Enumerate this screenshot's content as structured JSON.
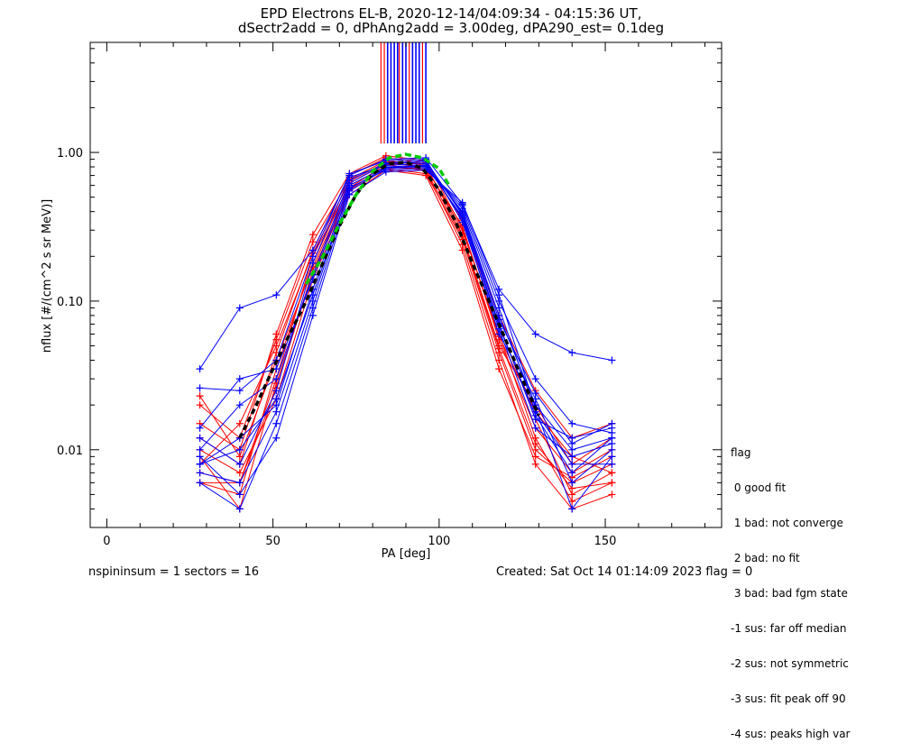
{
  "title_line1": "EPD Electrons EL-B, 2020-12-14/04:09:34 - 04:15:36 UT,",
  "title_line2": "dSectr2add = 0, dPhAng2add = 3.00deg, dPA290_est=   0.1deg",
  "footer_left": "nspininsum =  1  sectors = 16",
  "footer_right": "Created: Sat Oct 14 01:14:09 2023   flag = 0",
  "legend": {
    "title": "flag",
    "items": [
      " 0 good fit",
      " 1 bad: not converge",
      " 2 bad: no fit",
      " 3 bad: bad fgm state",
      "-1 sus: far off median",
      "-2 sus: not symmetric",
      "-3 sus: fit peak off 90",
      "-4 sus: peaks high var"
    ]
  },
  "colors": {
    "red": "#ff0000",
    "blue": "#0000ff",
    "green": "#00cc00",
    "black": "#000000"
  },
  "chart_data": {
    "type": "line",
    "xlabel": "PA [deg]",
    "ylabel": "nflux [#/(cm^2 s sr MeV)]",
    "xlim": [
      -5,
      185
    ],
    "ylim": [
      0.003,
      5.5
    ],
    "yscale": "log",
    "xticks": [
      0,
      50,
      100,
      150
    ],
    "xtick_labels": [
      "0",
      "50",
      "100",
      "150"
    ],
    "yticks": [
      0.01,
      0.1,
      1.0
    ],
    "ytick_labels": [
      "0.01",
      "0.10",
      "1.00"
    ],
    "grid": false,
    "pa_bins": [
      28,
      40,
      51,
      62,
      73,
      84,
      96,
      107,
      118,
      129,
      140,
      152
    ],
    "vertical_peak_lines": {
      "red": [
        82.5,
        83.5,
        88,
        91,
        95
      ],
      "blue": [
        84.5,
        85.5,
        86.5,
        87.5,
        89,
        90,
        92,
        93,
        94,
        96
      ],
      "y_from": 1.15
    },
    "series": [
      {
        "color": "#ff0000",
        "values": [
          0.006,
          0.005,
          0.035,
          0.18,
          0.62,
          0.85,
          0.8,
          0.3,
          0.06,
          0.012,
          0.0045,
          0.006
        ]
      },
      {
        "color": "#ff0000",
        "values": [
          0.009,
          0.004,
          0.028,
          0.15,
          0.55,
          0.78,
          0.72,
          0.26,
          0.045,
          0.01,
          0.006,
          0.008
        ]
      },
      {
        "color": "#ff0000",
        "values": [
          0.012,
          0.008,
          0.045,
          0.22,
          0.7,
          0.92,
          0.85,
          0.35,
          0.07,
          0.016,
          0.005,
          0.007
        ]
      },
      {
        "color": "#ff0000",
        "values": [
          0.007,
          0.006,
          0.03,
          0.2,
          0.6,
          0.8,
          0.78,
          0.32,
          0.055,
          0.014,
          0.007,
          0.01
        ]
      },
      {
        "color": "#ff0000",
        "values": [
          0.02,
          0.012,
          0.055,
          0.25,
          0.66,
          0.88,
          0.82,
          0.28,
          0.05,
          0.02,
          0.008,
          0.012
        ]
      },
      {
        "color": "#ff0000",
        "values": [
          0.023,
          0.009,
          0.04,
          0.17,
          0.58,
          0.83,
          0.75,
          0.24,
          0.04,
          0.008,
          0.004,
          0.005
        ]
      },
      {
        "color": "#ff0000",
        "values": [
          0.01,
          0.007,
          0.022,
          0.14,
          0.52,
          0.76,
          0.7,
          0.22,
          0.035,
          0.009,
          0.0065,
          0.009
        ]
      },
      {
        "color": "#ff0000",
        "values": [
          0.008,
          0.015,
          0.05,
          0.21,
          0.64,
          0.86,
          0.84,
          0.36,
          0.08,
          0.025,
          0.012,
          0.015
        ]
      },
      {
        "color": "#ff0000",
        "values": [
          0.006,
          0.006,
          0.026,
          0.16,
          0.56,
          0.8,
          0.76,
          0.27,
          0.048,
          0.011,
          0.0055,
          0.006
        ]
      },
      {
        "color": "#ff0000",
        "values": [
          0.015,
          0.01,
          0.06,
          0.28,
          0.72,
          0.95,
          0.88,
          0.31,
          0.058,
          0.018,
          0.009,
          0.007
        ]
      },
      {
        "color": "#0000ff",
        "values": [
          0.008,
          0.012,
          0.02,
          0.12,
          0.6,
          0.8,
          0.82,
          0.4,
          0.08,
          0.02,
          0.01,
          0.012
        ]
      },
      {
        "color": "#0000ff",
        "values": [
          0.006,
          0.004,
          0.015,
          0.09,
          0.55,
          0.78,
          0.8,
          0.42,
          0.09,
          0.018,
          0.008,
          0.008
        ]
      },
      {
        "color": "#0000ff",
        "values": [
          0.01,
          0.02,
          0.03,
          0.15,
          0.65,
          0.85,
          0.88,
          0.38,
          0.07,
          0.016,
          0.012,
          0.014
        ]
      },
      {
        "color": "#0000ff",
        "values": [
          0.012,
          0.008,
          0.025,
          0.18,
          0.68,
          0.82,
          0.84,
          0.36,
          0.06,
          0.022,
          0.006,
          0.01
        ]
      },
      {
        "color": "#0000ff",
        "values": [
          0.007,
          0.006,
          0.018,
          0.1,
          0.58,
          0.76,
          0.78,
          0.44,
          0.1,
          0.03,
          0.015,
          0.013
        ]
      },
      {
        "color": "#0000ff",
        "values": [
          0.026,
          0.025,
          0.04,
          0.2,
          0.72,
          0.88,
          0.9,
          0.34,
          0.065,
          0.014,
          0.009,
          0.011
        ]
      },
      {
        "color": "#0000ff",
        "values": [
          0.009,
          0.005,
          0.012,
          0.08,
          0.52,
          0.74,
          0.76,
          0.46,
          0.11,
          0.019,
          0.004,
          0.009
        ]
      },
      {
        "color": "#0000ff",
        "values": [
          0.014,
          0.03,
          0.035,
          0.14,
          0.62,
          0.84,
          0.86,
          0.39,
          0.075,
          0.024,
          0.011,
          0.015
        ]
      },
      {
        "color": "#0000ff",
        "values": [
          0.035,
          0.09,
          0.11,
          0.22,
          0.7,
          0.9,
          0.92,
          0.45,
          0.12,
          0.06,
          0.045,
          0.04
        ]
      },
      {
        "color": "#0000ff",
        "values": [
          0.008,
          0.01,
          0.022,
          0.11,
          0.57,
          0.79,
          0.81,
          0.37,
          0.068,
          0.017,
          0.007,
          0.012
        ]
      }
    ],
    "green_fit": {
      "color": "#00cc00",
      "x": [
        60,
        65,
        70,
        75,
        80,
        85,
        90,
        95,
        100,
        103
      ],
      "y": [
        0.13,
        0.2,
        0.33,
        0.52,
        0.75,
        0.92,
        0.97,
        0.92,
        0.78,
        0.6
      ]
    },
    "black_median": {
      "color": "#000000",
      "x": [
        40,
        45,
        50,
        55,
        60,
        65,
        70,
        75,
        80,
        85,
        90,
        95,
        100,
        105,
        110,
        115,
        120,
        125,
        130
      ],
      "y": [
        0.012,
        0.02,
        0.035,
        0.06,
        0.1,
        0.18,
        0.32,
        0.52,
        0.72,
        0.84,
        0.86,
        0.78,
        0.56,
        0.34,
        0.18,
        0.1,
        0.055,
        0.03,
        0.017
      ]
    }
  }
}
